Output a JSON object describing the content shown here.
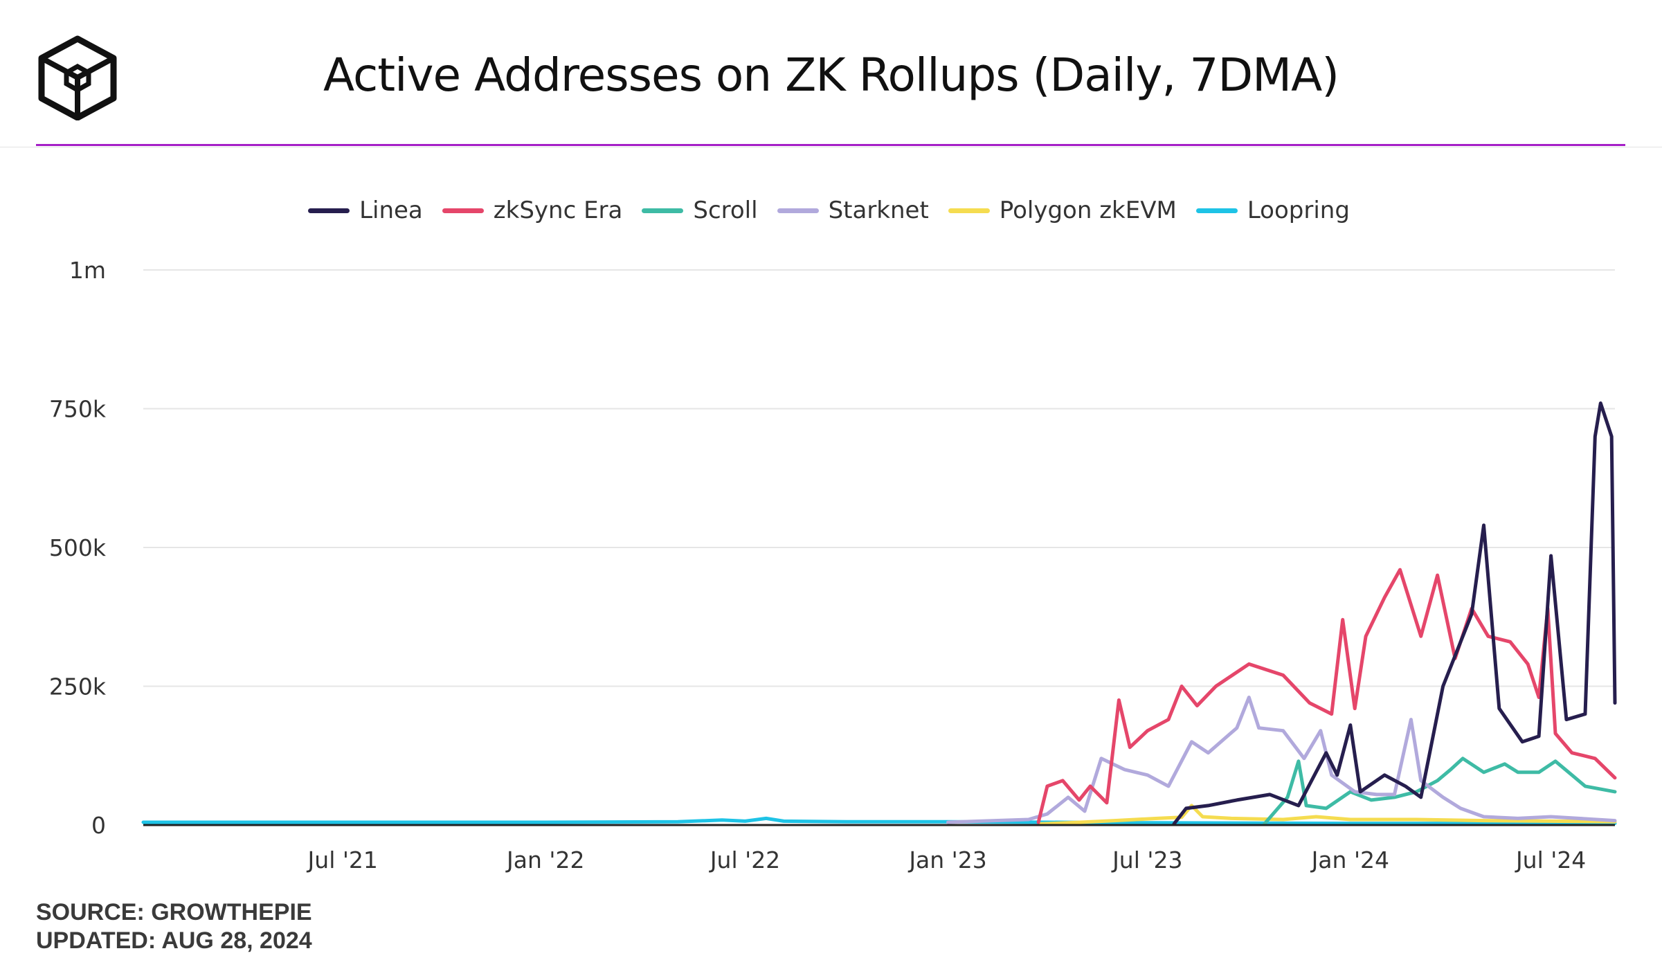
{
  "header": {
    "title": "Active Addresses on ZK Rollups (Daily, 7DMA)",
    "logo_icon": "cube-logo-icon"
  },
  "colors": {
    "accent_line": "#a51fc7",
    "grid": "#e6e6e6",
    "axis": "#222222"
  },
  "footer": {
    "source": "SOURCE: GROWTHEPIE",
    "updated": "UPDATED: AUG 28, 2024"
  },
  "chart_data": {
    "type": "line",
    "title": "Active Addresses on ZK Rollups (Daily, 7DMA)",
    "xlabel": "",
    "ylabel": "",
    "x_range": [
      "2021-01-01",
      "2024-08-28"
    ],
    "ylim": [
      0,
      1000000
    ],
    "y_ticks": [
      {
        "value": 0,
        "label": "0"
      },
      {
        "value": 250000,
        "label": "250k"
      },
      {
        "value": 500000,
        "label": "500k"
      },
      {
        "value": 750000,
        "label": "750k"
      },
      {
        "value": 1000000,
        "label": "1m"
      }
    ],
    "x_ticks": [
      {
        "date": "2021-07-01",
        "label": "Jul '21"
      },
      {
        "date": "2022-01-01",
        "label": "Jan '22"
      },
      {
        "date": "2022-07-01",
        "label": "Jul '22"
      },
      {
        "date": "2023-01-01",
        "label": "Jan '23"
      },
      {
        "date": "2023-07-01",
        "label": "Jul '23"
      },
      {
        "date": "2024-01-01",
        "label": "Jan '24"
      },
      {
        "date": "2024-07-01",
        "label": "Jul '24"
      }
    ],
    "grid": true,
    "legend_position": "top-center",
    "series": [
      {
        "name": "Loopring",
        "color": "#1ec3e6",
        "points": [
          [
            "2021-01-01",
            5000
          ],
          [
            "2021-07-01",
            5000
          ],
          [
            "2022-01-01",
            5000
          ],
          [
            "2022-05-01",
            6000
          ],
          [
            "2022-06-10",
            9000
          ],
          [
            "2022-07-01",
            7000
          ],
          [
            "2022-07-20",
            12000
          ],
          [
            "2022-08-05",
            7000
          ],
          [
            "2022-10-01",
            6000
          ],
          [
            "2023-01-01",
            6000
          ],
          [
            "2023-04-01",
            5000
          ],
          [
            "2023-07-01",
            4000
          ],
          [
            "2024-01-01",
            3000
          ],
          [
            "2024-08-28",
            3000
          ]
        ]
      },
      {
        "name": "Polygon zkEVM",
        "color": "#f5dc50",
        "points": [
          [
            "2023-03-25",
            2000
          ],
          [
            "2023-05-01",
            5000
          ],
          [
            "2023-06-01",
            8000
          ],
          [
            "2023-07-10",
            12000
          ],
          [
            "2023-08-01",
            14000
          ],
          [
            "2023-08-10",
            35000
          ],
          [
            "2023-08-20",
            15000
          ],
          [
            "2023-09-15",
            12000
          ],
          [
            "2023-11-01",
            10000
          ],
          [
            "2023-12-01",
            15000
          ],
          [
            "2024-01-01",
            10000
          ],
          [
            "2024-03-01",
            10000
          ],
          [
            "2024-05-01",
            8000
          ],
          [
            "2024-07-01",
            7000
          ],
          [
            "2024-08-28",
            6000
          ]
        ]
      },
      {
        "name": "Scroll",
        "color": "#3ebba5",
        "points": [
          [
            "2023-10-15",
            2000
          ],
          [
            "2023-11-05",
            50000
          ],
          [
            "2023-11-15",
            115000
          ],
          [
            "2023-11-22",
            35000
          ],
          [
            "2023-12-10",
            30000
          ],
          [
            "2024-01-01",
            60000
          ],
          [
            "2024-01-20",
            45000
          ],
          [
            "2024-02-10",
            50000
          ],
          [
            "2024-03-01",
            60000
          ],
          [
            "2024-03-20",
            80000
          ],
          [
            "2024-04-01",
            100000
          ],
          [
            "2024-04-12",
            120000
          ],
          [
            "2024-05-01",
            95000
          ],
          [
            "2024-05-20",
            110000
          ],
          [
            "2024-06-01",
            95000
          ],
          [
            "2024-06-20",
            95000
          ],
          [
            "2024-07-05",
            115000
          ],
          [
            "2024-07-20",
            90000
          ],
          [
            "2024-08-01",
            70000
          ],
          [
            "2024-08-28",
            60000
          ]
        ]
      },
      {
        "name": "Starknet",
        "color": "#b1a9dc",
        "points": [
          [
            "2023-01-01",
            5000
          ],
          [
            "2023-03-15",
            10000
          ],
          [
            "2023-04-01",
            20000
          ],
          [
            "2023-04-20",
            50000
          ],
          [
            "2023-05-05",
            25000
          ],
          [
            "2023-05-20",
            120000
          ],
          [
            "2023-06-10",
            100000
          ],
          [
            "2023-07-01",
            90000
          ],
          [
            "2023-07-20",
            70000
          ],
          [
            "2023-08-10",
            150000
          ],
          [
            "2023-08-25",
            130000
          ],
          [
            "2023-09-20",
            175000
          ],
          [
            "2023-10-01",
            230000
          ],
          [
            "2023-10-10",
            175000
          ],
          [
            "2023-11-01",
            170000
          ],
          [
            "2023-11-20",
            120000
          ],
          [
            "2023-12-05",
            170000
          ],
          [
            "2023-12-15",
            90000
          ],
          [
            "2024-01-05",
            60000
          ],
          [
            "2024-01-25",
            55000
          ],
          [
            "2024-02-10",
            55000
          ],
          [
            "2024-02-25",
            190000
          ],
          [
            "2024-03-05",
            80000
          ],
          [
            "2024-03-25",
            50000
          ],
          [
            "2024-04-10",
            30000
          ],
          [
            "2024-05-01",
            15000
          ],
          [
            "2024-06-01",
            12000
          ],
          [
            "2024-07-01",
            15000
          ],
          [
            "2024-08-28",
            8000
          ]
        ]
      },
      {
        "name": "zkSync Era",
        "color": "#e5466a",
        "points": [
          [
            "2023-03-24",
            5000
          ],
          [
            "2023-04-01",
            70000
          ],
          [
            "2023-04-15",
            80000
          ],
          [
            "2023-04-30",
            45000
          ],
          [
            "2023-05-10",
            70000
          ],
          [
            "2023-05-25",
            40000
          ],
          [
            "2023-06-05",
            225000
          ],
          [
            "2023-06-15",
            140000
          ],
          [
            "2023-07-01",
            170000
          ],
          [
            "2023-07-20",
            190000
          ],
          [
            "2023-08-01",
            250000
          ],
          [
            "2023-08-15",
            215000
          ],
          [
            "2023-09-01",
            250000
          ],
          [
            "2023-10-01",
            290000
          ],
          [
            "2023-11-01",
            270000
          ],
          [
            "2023-11-25",
            220000
          ],
          [
            "2023-12-15",
            200000
          ],
          [
            "2023-12-25",
            370000
          ],
          [
            "2024-01-05",
            210000
          ],
          [
            "2024-01-15",
            340000
          ],
          [
            "2024-02-01",
            410000
          ],
          [
            "2024-02-15",
            460000
          ],
          [
            "2024-03-05",
            340000
          ],
          [
            "2024-03-20",
            450000
          ],
          [
            "2024-04-05",
            300000
          ],
          [
            "2024-04-20",
            390000
          ],
          [
            "2024-05-05",
            340000
          ],
          [
            "2024-05-25",
            330000
          ],
          [
            "2024-06-10",
            290000
          ],
          [
            "2024-06-20",
            230000
          ],
          [
            "2024-06-28",
            390000
          ],
          [
            "2024-07-05",
            165000
          ],
          [
            "2024-07-20",
            130000
          ],
          [
            "2024-08-10",
            120000
          ],
          [
            "2024-08-28",
            85000
          ]
        ]
      },
      {
        "name": "Linea",
        "color": "#261e4e",
        "points": [
          [
            "2023-07-25",
            2000
          ],
          [
            "2023-08-05",
            30000
          ],
          [
            "2023-08-25",
            35000
          ],
          [
            "2023-09-20",
            45000
          ],
          [
            "2023-10-20",
            55000
          ],
          [
            "2023-11-15",
            35000
          ],
          [
            "2023-12-10",
            130000
          ],
          [
            "2023-12-20",
            90000
          ],
          [
            "2024-01-01",
            180000
          ],
          [
            "2024-01-10",
            60000
          ],
          [
            "2024-02-01",
            90000
          ],
          [
            "2024-02-20",
            70000
          ],
          [
            "2024-03-05",
            50000
          ],
          [
            "2024-03-25",
            250000
          ],
          [
            "2024-04-20",
            380000
          ],
          [
            "2024-05-01",
            540000
          ],
          [
            "2024-05-15",
            210000
          ],
          [
            "2024-06-05",
            150000
          ],
          [
            "2024-06-20",
            160000
          ],
          [
            "2024-07-01",
            485000
          ],
          [
            "2024-07-15",
            190000
          ],
          [
            "2024-08-01",
            200000
          ],
          [
            "2024-08-10",
            700000
          ],
          [
            "2024-08-15",
            760000
          ],
          [
            "2024-08-25",
            700000
          ],
          [
            "2024-08-28",
            220000
          ]
        ]
      }
    ]
  }
}
